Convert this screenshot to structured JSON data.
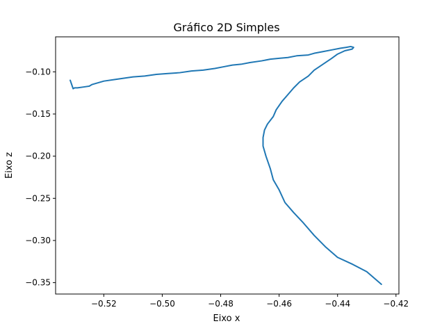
{
  "chart_data": {
    "type": "line",
    "title": "Gráfico 2D Simples",
    "xlabel": "Eixo x",
    "ylabel": "Eixo z",
    "xlim": [
      -0.5365,
      -0.419
    ],
    "ylim": [
      -0.3635,
      -0.0585
    ],
    "xticks": [
      -0.52,
      -0.5,
      -0.48,
      -0.46,
      -0.44,
      -0.42
    ],
    "xtick_labels": [
      "−0.52",
      "−0.50",
      "−0.48",
      "−0.46",
      "−0.44",
      "−0.42"
    ],
    "yticks": [
      -0.1,
      -0.15,
      -0.2,
      -0.25,
      -0.3,
      -0.35
    ],
    "ytick_labels": [
      "−0.10",
      "−0.15",
      "−0.20",
      "−0.25",
      "−0.30",
      "−0.35"
    ],
    "grid": false,
    "series": [
      {
        "color": "#1f77b4",
        "x": [
          -0.5315,
          -0.5305,
          -0.53,
          -0.529,
          -0.527,
          -0.525,
          -0.524,
          -0.52,
          -0.516,
          -0.51,
          -0.506,
          -0.502,
          -0.498,
          -0.494,
          -0.49,
          -0.486,
          -0.482,
          -0.479,
          -0.476,
          -0.473,
          -0.47,
          -0.466,
          -0.463,
          -0.46,
          -0.457,
          -0.454,
          -0.45,
          -0.448,
          -0.445,
          -0.442,
          -0.439,
          -0.437,
          -0.4355,
          -0.4345,
          -0.435,
          -0.4375,
          -0.44,
          -0.442,
          -0.445,
          -0.448,
          -0.45,
          -0.453,
          -0.455,
          -0.457,
          -0.459,
          -0.461,
          -0.462,
          -0.464,
          -0.465,
          -0.4655,
          -0.4655,
          -0.4645,
          -0.463,
          -0.462,
          -0.46,
          -0.458,
          -0.455,
          -0.452,
          -0.448,
          -0.444,
          -0.44,
          -0.435,
          -0.43,
          -0.425
        ],
        "y": [
          -0.11,
          -0.12,
          -0.119,
          -0.119,
          -0.118,
          -0.117,
          -0.115,
          -0.111,
          -0.109,
          -0.106,
          -0.105,
          -0.103,
          -0.102,
          -0.101,
          -0.099,
          -0.098,
          -0.096,
          -0.094,
          -0.092,
          -0.091,
          -0.089,
          -0.087,
          -0.085,
          -0.084,
          -0.083,
          -0.081,
          -0.08,
          -0.078,
          -0.076,
          -0.074,
          -0.072,
          -0.071,
          -0.07,
          -0.071,
          -0.073,
          -0.075,
          -0.079,
          -0.084,
          -0.091,
          -0.098,
          -0.105,
          -0.112,
          -0.119,
          -0.127,
          -0.135,
          -0.145,
          -0.153,
          -0.162,
          -0.169,
          -0.178,
          -0.188,
          -0.2,
          -0.215,
          -0.228,
          -0.24,
          -0.255,
          -0.267,
          -0.278,
          -0.294,
          -0.308,
          -0.32,
          -0.328,
          -0.337,
          -0.352
        ]
      }
    ]
  }
}
